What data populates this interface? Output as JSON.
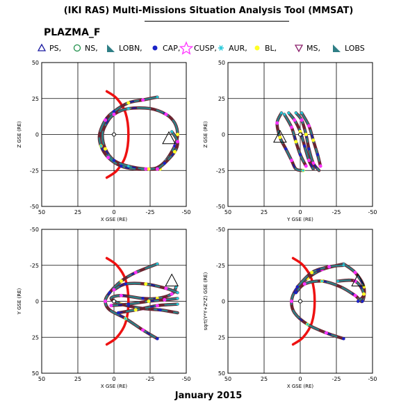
{
  "header": {
    "title": "(IKI RAS) Multi-Missions Situation Analysis Tool (MMSAT)",
    "mission": "PLAZMA_F"
  },
  "legend": [
    {
      "label": "PS,",
      "symbol": "triangle-up-open",
      "color": "#1a1aa0"
    },
    {
      "label": "NS,",
      "symbol": "circle-open",
      "color": "#1f8f4a"
    },
    {
      "label": "LOBN,",
      "symbol": "right-triangle",
      "color": "#2f7f86"
    },
    {
      "label": "CAP,",
      "symbol": "filled-circle",
      "color": "#1a23c7"
    },
    {
      "label": "CUSP,",
      "symbol": "star-open",
      "color": "#ff33ff"
    },
    {
      "label": "AUR,",
      "symbol": "asterisk",
      "color": "#26c9d9"
    },
    {
      "label": "BL,",
      "symbol": "filled-circle",
      "color": "#ffff26"
    },
    {
      "label": "MS,",
      "symbol": "triangle-down-open",
      "color": "#8a1f6b"
    },
    {
      "label": "LOBS",
      "symbol": "right-triangle",
      "color": "#2f7f86"
    }
  ],
  "footer": {
    "date": "January 2015"
  },
  "colors": {
    "magnetopause": "#ee1111",
    "bow_shock": "#ee1111",
    "magnetosheath": "#6b2430",
    "lobe": "#2f8086",
    "plasma_sheet": "#1a1aa0",
    "cap": "#1a23c7",
    "cusp": "#ff33ff",
    "aurora": "#26c9d9",
    "boundary_layer": "#ffff26"
  },
  "chart_data": [
    {
      "type": "scatter",
      "panel": "top-left",
      "xlabel": "X GSE (RE)",
      "ylabel": "Z GSE (RE)",
      "xlim": [
        50,
        -50
      ],
      "ylim": [
        -50,
        50
      ],
      "xticks": [
        50,
        25,
        0,
        -25,
        -50
      ],
      "yticks": [
        -50,
        -25,
        0,
        25,
        50
      ],
      "grid": true,
      "magnetopause": [
        [
          5,
          30
        ],
        [
          -2,
          25
        ],
        [
          -8,
          15
        ],
        [
          -10,
          0
        ],
        [
          -8,
          -15
        ],
        [
          -2,
          -25
        ],
        [
          5,
          -30
        ]
      ],
      "orbits": [
        [
          [
            -30,
            26
          ],
          [
            -20,
            24
          ],
          [
            -10,
            22
          ],
          [
            0,
            16
          ],
          [
            6,
            10
          ],
          [
            10,
            0
          ],
          [
            9,
            -8
          ],
          [
            4,
            -16
          ],
          [
            -5,
            -22
          ],
          [
            -15,
            -24
          ],
          [
            -24,
            -24
          ],
          [
            -30,
            -23
          ],
          [
            -36,
            -18
          ],
          [
            -42,
            -8
          ],
          [
            -44,
            0
          ],
          [
            -42,
            8
          ],
          [
            -36,
            14
          ],
          [
            -25,
            18
          ],
          [
            -10,
            18
          ],
          [
            0,
            14
          ],
          [
            5,
            8
          ],
          [
            8,
            0
          ],
          [
            6,
            -10
          ],
          [
            0,
            -18
          ],
          [
            -10,
            -22
          ],
          [
            -22,
            -24
          ],
          [
            -32,
            -24
          ]
        ],
        [
          [
            -40,
            2
          ],
          [
            -44,
            -5
          ],
          [
            -42,
            -12
          ],
          [
            -35,
            -20
          ],
          [
            -30,
            -24
          ]
        ]
      ],
      "spacecraft": {
        "x": -38,
        "y": -3
      },
      "earth": {
        "x": 0,
        "y": 0
      }
    },
    {
      "type": "scatter",
      "panel": "top-right",
      "xlabel": "Y GSE (RE)",
      "ylabel": "Z GSE (RE)",
      "xlim": [
        50,
        -50
      ],
      "ylim": [
        -50,
        50
      ],
      "xticks": [
        50,
        25,
        0,
        -25,
        -50
      ],
      "yticks": [
        -50,
        -25,
        0,
        25,
        50
      ],
      "grid": true,
      "orbits": [
        [
          [
            13,
            15
          ],
          [
            16,
            8
          ],
          [
            14,
            -2
          ],
          [
            10,
            -10
          ],
          [
            6,
            -18
          ],
          [
            3,
            -24
          ],
          [
            -2,
            -25
          ]
        ],
        [
          [
            3,
            15
          ],
          [
            -1,
            10
          ],
          [
            -4,
            0
          ],
          [
            -6,
            -10
          ],
          [
            -9,
            -20
          ],
          [
            -13,
            -25
          ]
        ],
        [
          [
            8,
            15
          ],
          [
            4,
            10
          ],
          [
            0,
            2
          ],
          [
            -3,
            -8
          ],
          [
            -6,
            -18
          ],
          [
            -9,
            -24
          ]
        ],
        [
          [
            -1,
            15
          ],
          [
            -6,
            6
          ],
          [
            -9,
            -4
          ],
          [
            -12,
            -14
          ],
          [
            -14,
            -22
          ]
        ],
        [
          [
            11,
            14
          ],
          [
            6,
            5
          ],
          [
            3,
            -5
          ],
          [
            0,
            -14
          ],
          [
            -4,
            -22
          ]
        ]
      ],
      "spacecraft": {
        "x": 14,
        "y": -2
      },
      "earth": {
        "x": 0,
        "y": 0
      }
    },
    {
      "type": "scatter",
      "panel": "bottom-left",
      "xlabel": "X GSE (RE)",
      "ylabel": "Y GSE (RE)",
      "xlim": [
        50,
        -50
      ],
      "ylim": [
        50,
        -50
      ],
      "xticks": [
        50,
        25,
        0,
        -25,
        -50
      ],
      "yticks": [
        -50,
        -25,
        0,
        25,
        50
      ],
      "grid": true,
      "magnetopause": [
        [
          5,
          -30
        ],
        [
          -2,
          -25
        ],
        [
          -8,
          -15
        ],
        [
          -10,
          0
        ],
        [
          -8,
          15
        ],
        [
          -2,
          25
        ],
        [
          5,
          30
        ]
      ],
      "orbits": [
        [
          [
            -30,
            -26
          ],
          [
            -15,
            -20
          ],
          [
            -5,
            -14
          ],
          [
            3,
            -6
          ],
          [
            6,
            0
          ],
          [
            3,
            6
          ],
          [
            -8,
            12
          ],
          [
            -20,
            20
          ],
          [
            -30,
            26
          ]
        ],
        [
          [
            -43,
            -10
          ],
          [
            -40,
            -5
          ],
          [
            -30,
            -2
          ],
          [
            -20,
            -2
          ],
          [
            -5,
            -4
          ],
          [
            2,
            -2
          ],
          [
            -5,
            2
          ],
          [
            -20,
            5
          ],
          [
            -32,
            6
          ],
          [
            -44,
            8
          ]
        ],
        [
          [
            -44,
            -6
          ],
          [
            -36,
            -9
          ],
          [
            -22,
            -12
          ],
          [
            -8,
            -12
          ],
          [
            0,
            -8
          ]
        ],
        [
          [
            -44,
            2
          ],
          [
            -30,
            3
          ],
          [
            -15,
            6
          ],
          [
            -3,
            8
          ]
        ],
        [
          [
            -44,
            -2
          ],
          [
            -35,
            -1
          ],
          [
            -24,
            0
          ],
          [
            -10,
            2
          ],
          [
            2,
            3
          ]
        ]
      ],
      "spacecraft": {
        "x": -40,
        "y": -14
      },
      "earth": {
        "x": 0,
        "y": 0
      }
    },
    {
      "type": "scatter",
      "panel": "bottom-right",
      "xlabel": "X GSE (RE)",
      "ylabel": "sqrt(Y*Y+Z*Z) GSE (RE)",
      "xlim": [
        50,
        -50
      ],
      "ylim": [
        50,
        -50
      ],
      "xticks": [
        50,
        25,
        0,
        -25,
        -50
      ],
      "yticks": [
        -50,
        -25,
        0,
        25,
        50
      ],
      "grid": true,
      "magnetopause": [
        [
          5,
          -30
        ],
        [
          -2,
          -25
        ],
        [
          -8,
          -15
        ],
        [
          -10,
          0
        ],
        [
          -8,
          15
        ],
        [
          -2,
          25
        ],
        [
          5,
          30
        ]
      ],
      "orbits": [
        [
          [
            -30,
            -26
          ],
          [
            -15,
            -22
          ],
          [
            -5,
            -16
          ],
          [
            3,
            -8
          ],
          [
            6,
            0
          ],
          [
            4,
            8
          ],
          [
            -5,
            16
          ],
          [
            -18,
            22
          ],
          [
            -30,
            26
          ]
        ],
        [
          [
            -30,
            -26
          ],
          [
            -38,
            -20
          ],
          [
            -44,
            -10
          ],
          [
            -43,
            0
          ],
          [
            -38,
            -4
          ],
          [
            -28,
            -10
          ],
          [
            -15,
            -14
          ],
          [
            -3,
            -12
          ],
          [
            3,
            -6
          ]
        ],
        [
          [
            -26,
            -14
          ],
          [
            -38,
            -14
          ],
          [
            -44,
            -5
          ],
          [
            -40,
            0
          ]
        ],
        [
          [
            -30,
            -25
          ],
          [
            -20,
            -24
          ],
          [
            -8,
            -20
          ],
          [
            2,
            -10
          ]
        ]
      ],
      "spacecraft": {
        "x": -40,
        "y": -14
      },
      "earth": {
        "x": 0,
        "y": 0
      }
    }
  ]
}
